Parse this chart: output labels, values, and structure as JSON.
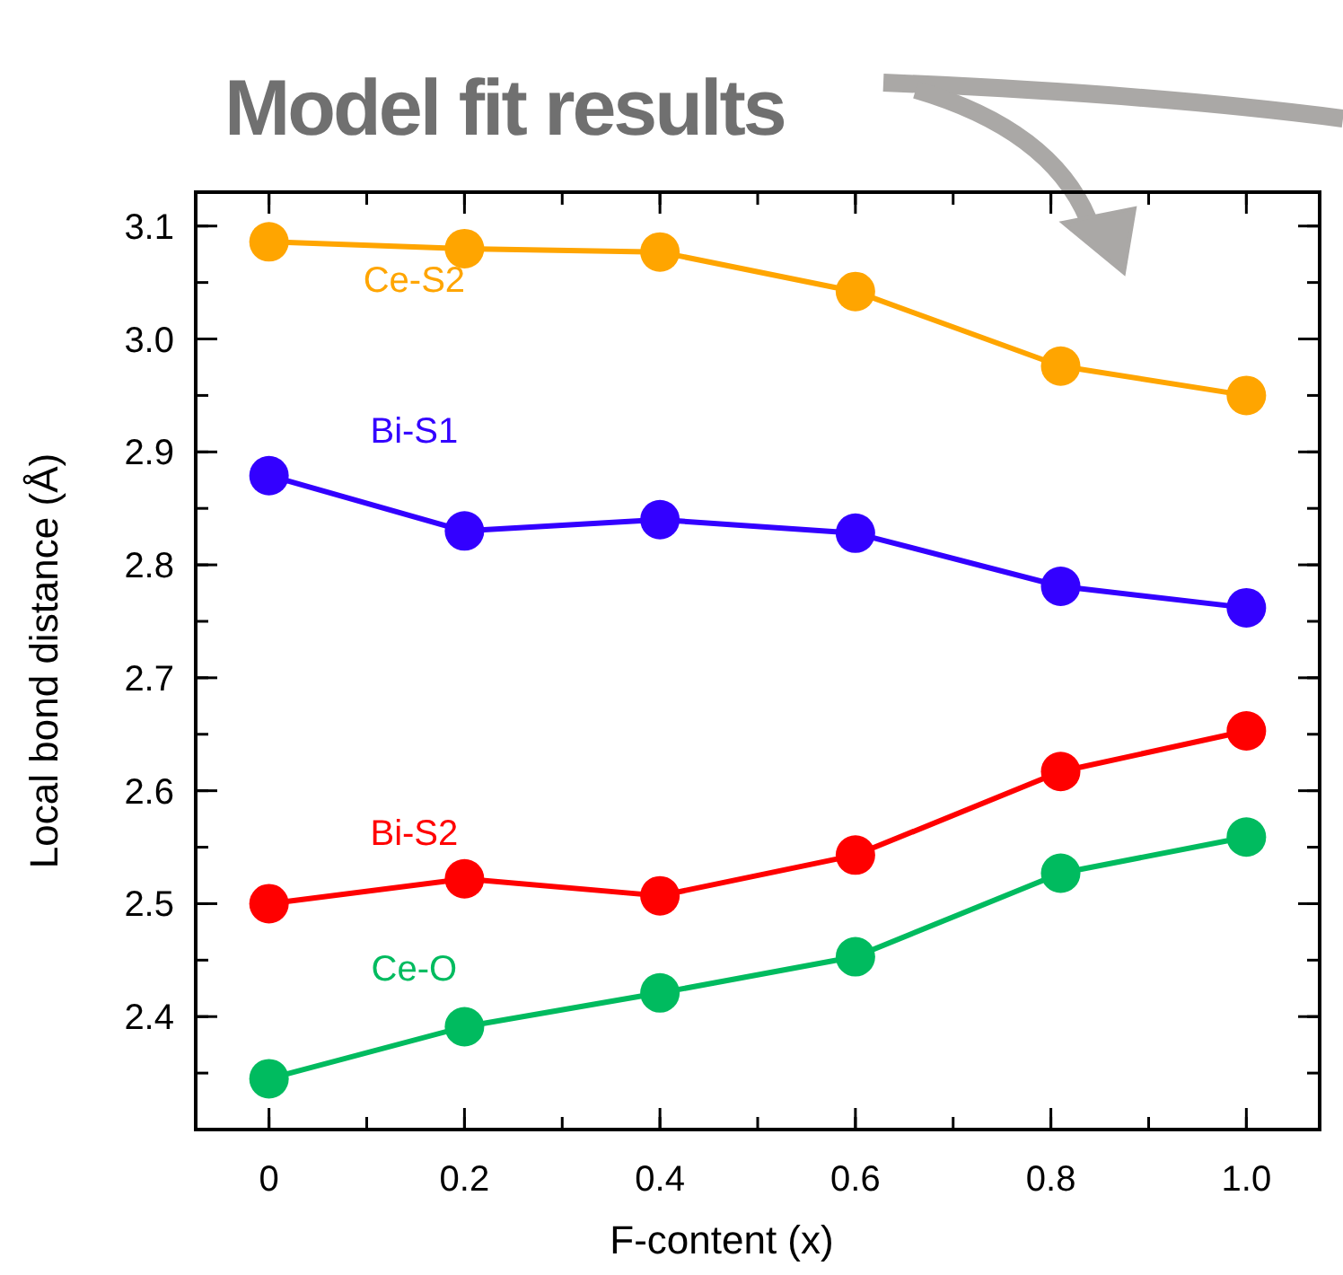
{
  "chart_data": {
    "type": "line",
    "title": "Model fit results",
    "xlabel": "F-content (x)",
    "ylabel": "Local bond distance (Å)",
    "x": [
      0,
      0.2,
      0.4,
      0.6,
      0.81,
      1.0
    ],
    "series": [
      {
        "name": "Ce-S2",
        "color": "#ffa500",
        "values": [
          3.086,
          3.08,
          3.077,
          3.042,
          2.976,
          2.95
        ]
      },
      {
        "name": "Bi-S1",
        "color": "#3300ff",
        "values": [
          2.879,
          2.83,
          2.84,
          2.828,
          2.781,
          2.762
        ]
      },
      {
        "name": "Bi-S2",
        "color": "#ff0000",
        "values": [
          2.5,
          2.522,
          2.507,
          2.543,
          2.617,
          2.653
        ]
      },
      {
        "name": "Ce-O",
        "color": "#00bb5f",
        "values": [
          2.345,
          2.391,
          2.421,
          2.453,
          2.527,
          2.559
        ]
      }
    ],
    "xlim": [
      -0.075,
      1.075
    ],
    "ylim": [
      2.3,
      3.13
    ],
    "xticks": [
      0,
      0.2,
      0.4,
      0.6,
      0.8,
      {
        "value": 1,
        "label": "1.0"
      }
    ],
    "yticks": [
      2.4,
      2.5,
      2.6,
      2.7,
      2.8,
      2.9,
      {
        "value": 3,
        "label": "3.0"
      },
      3.1
    ],
    "grid": false,
    "marker": "circle",
    "line_style": "solid"
  }
}
